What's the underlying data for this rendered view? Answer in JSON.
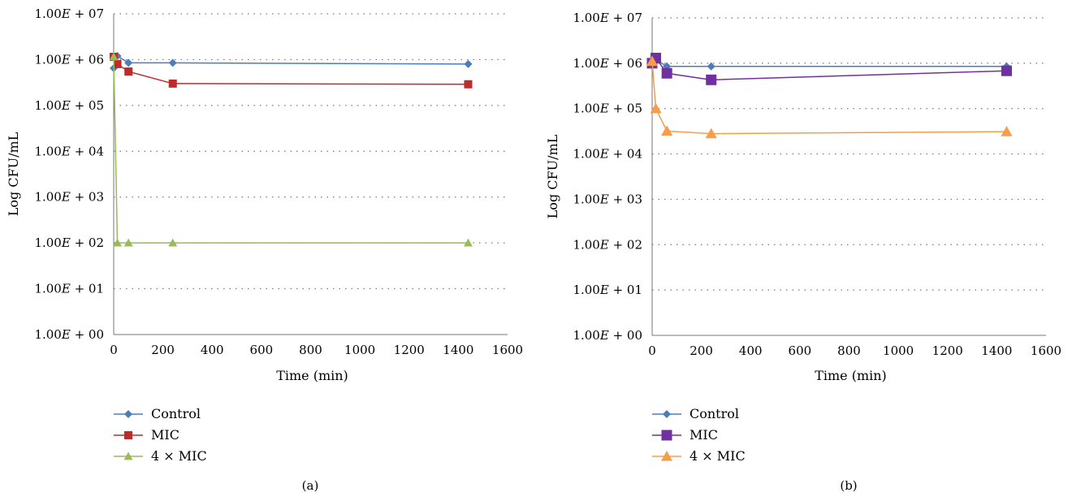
{
  "chart_data": [
    {
      "type": "line",
      "panel_label": "(a)",
      "xlabel": "Time (min)",
      "ylabel": "Log CFU/mL",
      "xlim": [
        0,
        1600
      ],
      "ylim": [
        0,
        7
      ],
      "x_ticks": [
        "0",
        "200",
        "400",
        "600",
        "800",
        "1000",
        "1200",
        "1400",
        "1600"
      ],
      "y_tick_labels": [
        "1.00E + 00",
        "1.00E + 01",
        "1.00E + 02",
        "1.00E + 03",
        "1.00E + 04",
        "1.00E + 05",
        "1.00E + 06",
        "1.00E + 07"
      ],
      "y_scale": "log10",
      "grid": "horizontal dotted",
      "legend_position": "bottom-left",
      "series": [
        {
          "name": "Control",
          "marker": "diamond",
          "color": "#4A7EBB",
          "x": [
            0,
            15,
            60,
            240,
            1440
          ],
          "y": [
            650000,
            1200000,
            850000,
            850000,
            800000
          ]
        },
        {
          "name": "MIC",
          "marker": "square",
          "color": "#BE2B2B",
          "x": [
            0,
            15,
            60,
            240,
            1440
          ],
          "y": [
            1150000,
            800000,
            550000,
            300000,
            290000
          ]
        },
        {
          "name": "4 × MIC",
          "marker": "triangle",
          "color": "#9BBB59",
          "x": [
            0,
            15,
            60,
            240,
            1440
          ],
          "y": [
            1150000,
            100,
            100,
            100,
            100
          ]
        }
      ]
    },
    {
      "type": "line",
      "panel_label": "(b)",
      "xlabel": "Time (min)",
      "ylabel": "Log CFU/mL",
      "xlim": [
        0,
        1600
      ],
      "ylim": [
        0,
        7
      ],
      "x_ticks": [
        "0",
        "200",
        "400",
        "600",
        "800",
        "1000",
        "1200",
        "1400",
        "1600"
      ],
      "y_tick_labels": [
        "1.00E + 00",
        "1.00E + 01",
        "1.00E + 02",
        "1.00E + 03",
        "1.00E + 04",
        "1.00E + 05",
        "1.00E + 06",
        "1.00E + 07"
      ],
      "y_scale": "log10",
      "grid": "horizontal dotted",
      "legend_position": "bottom-left",
      "series": [
        {
          "name": "Control",
          "marker": "diamond",
          "color": "#4A7EBB",
          "x": [
            0,
            15,
            60,
            240,
            1440
          ],
          "y": [
            1000000,
            1200000,
            850000,
            850000,
            850000
          ]
        },
        {
          "name": "MIC",
          "marker": "square",
          "color": "#7030A0",
          "x": [
            0,
            15,
            60,
            240,
            1440
          ],
          "y": [
            1000000,
            1300000,
            600000,
            430000,
            680000
          ]
        },
        {
          "name": "4 × MIC",
          "marker": "triangle",
          "color": "#F59D4B",
          "x": [
            0,
            15,
            60,
            240,
            1440
          ],
          "y": [
            1100000,
            100000,
            32000,
            28000,
            31000
          ]
        }
      ]
    }
  ]
}
